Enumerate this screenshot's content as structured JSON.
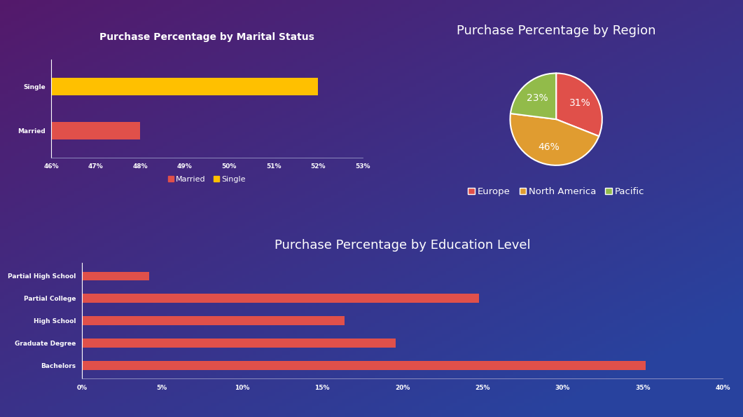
{
  "chart_data": [
    {
      "type": "bar",
      "title": "Purchase Percentage by Marital Status",
      "orientation": "horizontal",
      "categories": [
        "Married",
        "Single"
      ],
      "values": [
        48,
        52
      ],
      "colors": [
        "#e0504a",
        "#ffc000"
      ],
      "xlim": [
        46,
        53
      ],
      "xticks": [
        {
          "value": 46,
          "label": "46%"
        },
        {
          "value": 47,
          "label": "47%"
        },
        {
          "value": 48,
          "label": "48%"
        },
        {
          "value": 49,
          "label": "49%"
        },
        {
          "value": 50,
          "label": "50%"
        },
        {
          "value": 51,
          "label": "51%"
        },
        {
          "value": 52,
          "label": "52%"
        },
        {
          "value": 53,
          "label": "53%"
        }
      ],
      "legend": "lower center"
    },
    {
      "type": "pie",
      "title": "Purchase Percentage by Region",
      "categories": [
        "Europe",
        "North America",
        "Pacific"
      ],
      "values": [
        31,
        46,
        23
      ],
      "value_labels": [
        "31%",
        "46%",
        "23%"
      ],
      "data_labels": true,
      "colors": [
        "#e0504a",
        "#e09c30",
        "#92bb4a"
      ],
      "legend": "lower center"
    },
    {
      "type": "bar",
      "title": "Purchase Percentage by Education Level",
      "orientation": "horizontal",
      "categories": [
        "Bachelors",
        "Graduate Degree",
        "High School",
        "Partial College",
        "Partial High School"
      ],
      "values": [
        35.2,
        19.6,
        16.4,
        24.8,
        4.2
      ],
      "color": "#e0504a",
      "xlim": [
        0,
        40
      ],
      "xticks": [
        {
          "value": 0,
          "label": "0%"
        },
        {
          "value": 5,
          "label": "5%"
        },
        {
          "value": 10,
          "label": "10%"
        },
        {
          "value": 15,
          "label": "15%"
        },
        {
          "value": 20,
          "label": "20%"
        },
        {
          "value": 25,
          "label": "25%"
        },
        {
          "value": 30,
          "label": "30%"
        },
        {
          "value": 35,
          "label": "35%"
        },
        {
          "value": 40,
          "label": "40%"
        }
      ]
    }
  ]
}
